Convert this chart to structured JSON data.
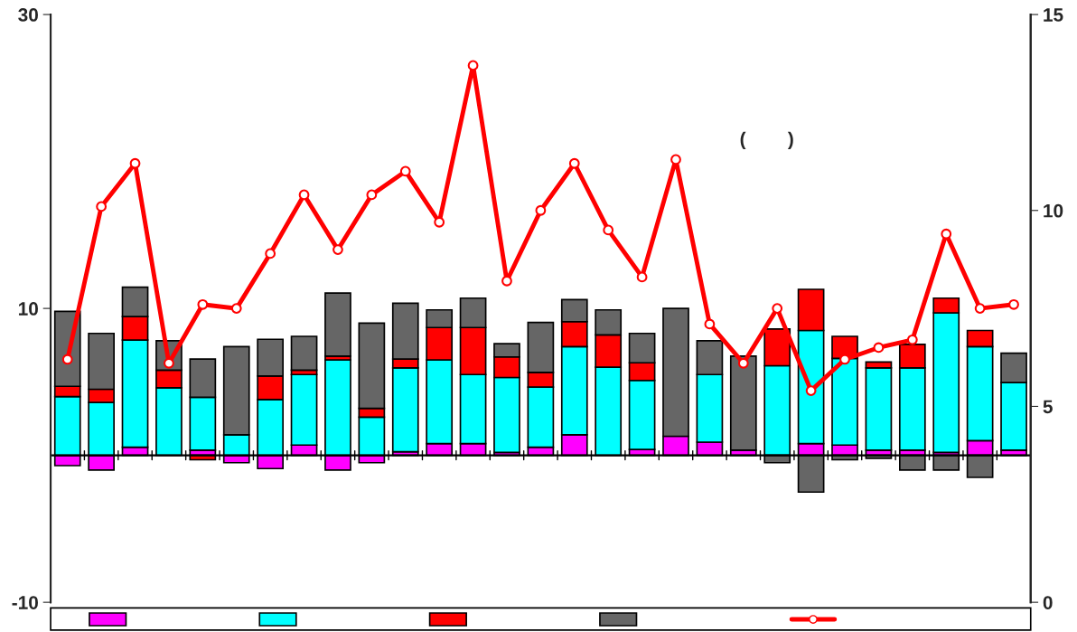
{
  "chart_data": {
    "type": "bar",
    "stacked": true,
    "categories": [
      null,
      null,
      null,
      null,
      null,
      null,
      null,
      null,
      null,
      null,
      null,
      null,
      null,
      null,
      null,
      null,
      null,
      null,
      null,
      null,
      null,
      null,
      null,
      null,
      null,
      null,
      null,
      null,
      null
    ],
    "series": [
      {
        "color": "#ff00ff",
        "values": [
          -0.7,
          -1.0,
          0.55,
          null,
          0.35,
          -0.5,
          -0.9,
          0.7,
          -1.0,
          -0.5,
          0.25,
          0.8,
          0.8,
          0.2,
          0.55,
          1.4,
          null,
          0.4,
          1.3,
          0.9,
          0.35,
          null,
          0.8,
          0.7,
          0.35,
          0.35,
          0.2,
          1.0,
          0.35
        ]
      },
      {
        "color": "#00ffff",
        "values": [
          4.0,
          3.6,
          7.3,
          4.6,
          3.6,
          1.4,
          3.8,
          4.8,
          6.5,
          2.6,
          5.7,
          5.7,
          4.7,
          5.1,
          4.1,
          6.0,
          6.0,
          4.7,
          null,
          4.6,
          null,
          6.1,
          7.7,
          5.9,
          5.6,
          5.6,
          9.5,
          6.4,
          4.6
        ]
      },
      {
        "color": "#ff0000",
        "values": [
          0.7,
          0.9,
          1.6,
          1.2,
          -0.3,
          null,
          1.6,
          0.3,
          0.25,
          0.6,
          0.6,
          2.2,
          3.2,
          1.4,
          1.0,
          1.7,
          2.2,
          1.2,
          null,
          null,
          null,
          2.5,
          2.8,
          1.5,
          0.4,
          1.6,
          1.0,
          1.1,
          null
        ]
      },
      {
        "color": "#666666",
        "values": [
          5.1,
          3.8,
          2.0,
          2.0,
          2.6,
          6.0,
          2.5,
          2.3,
          4.3,
          5.8,
          3.8,
          1.2,
          2.0,
          0.9,
          3.4,
          1.5,
          1.7,
          2.0,
          8.7,
          2.3,
          6.4,
          -0.5,
          -2.5,
          -0.3,
          -0.2,
          -1.0,
          -1.0,
          -1.5,
          2.0
        ]
      },
      {
        "type": "line",
        "axis": "y2",
        "color": "#ff0000",
        "marker": "circle",
        "values": [
          6.2,
          10.1,
          11.2,
          6.1,
          7.6,
          7.5,
          8.9,
          10.4,
          9.0,
          10.4,
          11.0,
          9.7,
          13.7,
          8.2,
          10.0,
          11.2,
          9.5,
          8.3,
          11.3,
          7.1,
          6.1,
          7.5,
          5.4,
          6.2,
          6.5,
          6.7,
          9.4,
          7.5,
          7.6
        ]
      }
    ],
    "ylim": [
      -10,
      30
    ],
    "yticks": [
      -10,
      10,
      30
    ],
    "y2lim": [
      0,
      15
    ],
    "y2ticks": [
      0,
      5,
      10,
      15
    ],
    "tick_labels": "y",
    "annotations": [
      "(        )"
    ]
  }
}
